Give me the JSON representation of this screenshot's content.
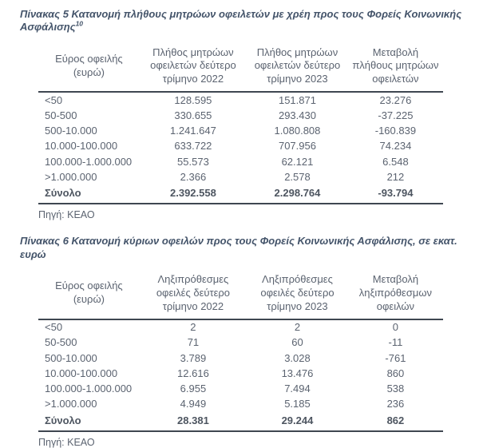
{
  "colors": {
    "title_text": "#44546a",
    "body_text": "#5b6370",
    "rule": "#3f4751",
    "background": "#ffffff"
  },
  "tables": [
    {
      "title": "Πίνακας 5 Κατανομή πλήθους μητρώων οφειλετών με χρέη προς τους Φορείς Κοινωνικής Ασφάλισης",
      "title_footnote": "10",
      "columns": [
        "Εύρος οφειλής (ευρώ)",
        "Πλήθος μητρώων οφειλετών δεύτερο τρίμηνο 2022",
        "Πλήθος μητρώων οφειλετών δεύτερο τρίμηνο 2023",
        "Μεταβολή πλήθους μητρώων οφειλετών"
      ],
      "rows": [
        [
          "<50",
          "128.595",
          "151.871",
          "23.276"
        ],
        [
          "50-500",
          "330.655",
          "293.430",
          "-37.225"
        ],
        [
          "500-10.000",
          "1.241.647",
          "1.080.808",
          "-160.839"
        ],
        [
          "10.000-100.000",
          "633.722",
          "707.956",
          "74.234"
        ],
        [
          "100.000-1.000.000",
          "55.573",
          "62.121",
          "6.548"
        ],
        [
          ">1.000.000",
          "2.366",
          "2.578",
          "212"
        ]
      ],
      "total_row": [
        "Σύνολο",
        "2.392.558",
        "2.298.764",
        "-93.794"
      ],
      "source": "Πηγή: ΚΕΑΟ"
    },
    {
      "title": "Πίνακας 6 Κατανομή κύριων οφειλών προς τους Φορείς Κοινωνικής Ασφάλισης, σε εκατ. ευρώ",
      "title_footnote": "",
      "columns": [
        "Εύρος οφειλής (ευρώ)",
        "Ληξιπρόθεσμες οφειλές δεύτερο τρίμηνο 2022",
        "Ληξιπρόθεσμες οφειλές δεύτερο τρίμηνο 2023",
        "Μεταβολή ληξιπρόθεσμων οφειλών"
      ],
      "rows": [
        [
          "<50",
          "2",
          "2",
          "0"
        ],
        [
          "50-500",
          "71",
          "60",
          "-11"
        ],
        [
          "500-10.000",
          "3.789",
          "3.028",
          "-761"
        ],
        [
          "10.000-100.000",
          "12.616",
          "13.476",
          "860"
        ],
        [
          "100.000-1.000.000",
          "6.955",
          "7.494",
          "538"
        ],
        [
          ">1.000.000",
          "4.949",
          "5.185",
          "236"
        ]
      ],
      "total_row": [
        "Σύνολο",
        "28.381",
        "29.244",
        "862"
      ],
      "source": "Πηγή: ΚΕΑΟ"
    }
  ]
}
